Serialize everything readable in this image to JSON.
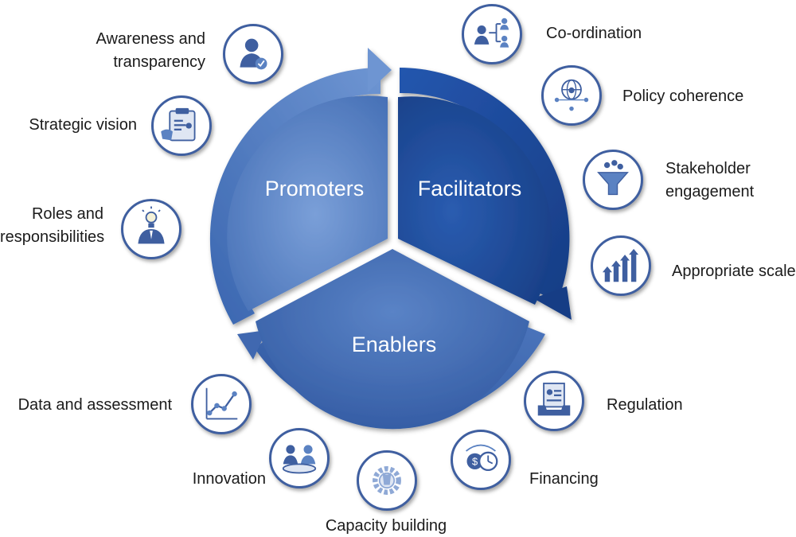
{
  "center": {
    "promoters": "Promoters",
    "facilitators": "Facilitators",
    "enablers": "Enablers"
  },
  "promoters_items": [
    "Awareness and transparency",
    "Strategic vision",
    "Roles and responsibilities"
  ],
  "facilitators_items": [
    "Co-ordination",
    "Policy coherence",
    "Stakeholder engagement",
    "Appropriate scale"
  ],
  "enablers_items": [
    "Regulation",
    "Financing",
    "Capacity building",
    "Innovation",
    "Data and assessment"
  ],
  "labels": {
    "awareness_line1": "Awareness and",
    "awareness_line2": "transparency",
    "strategic_vision": "Strategic vision",
    "roles_line1": "Roles and",
    "roles_line2": "responsibilities",
    "coordination": "Co-ordination",
    "policy_coherence": "Policy coherence",
    "stakeholder_line1": "Stakeholder",
    "stakeholder_line2": "engagement",
    "appropriate_scale": "Appropriate scale",
    "regulation": "Regulation",
    "financing": "Financing",
    "capacity_building": "Capacity building",
    "innovation": "Innovation",
    "data_assessment": "Data and assessment"
  },
  "colors": {
    "promoters": "#5b82c2",
    "facilitators": "#1f4a9a",
    "enablers": "#3f68b0",
    "icon_blue": "#3f5fa0"
  },
  "icons": {
    "awareness": "person-checkmark-icon",
    "strategic_vision": "clipboard-plan-icon",
    "roles": "person-lightbulb-icon",
    "coordination": "org-chart-icon",
    "policy_coherence": "globe-network-icon",
    "stakeholder": "funnel-people-icon",
    "appropriate_scale": "growth-arrows-icon",
    "regulation": "document-tray-icon",
    "financing": "money-clock-icon",
    "capacity_building": "gear-wrench-icon",
    "innovation": "people-meeting-icon",
    "data_assessment": "line-chart-icon"
  }
}
